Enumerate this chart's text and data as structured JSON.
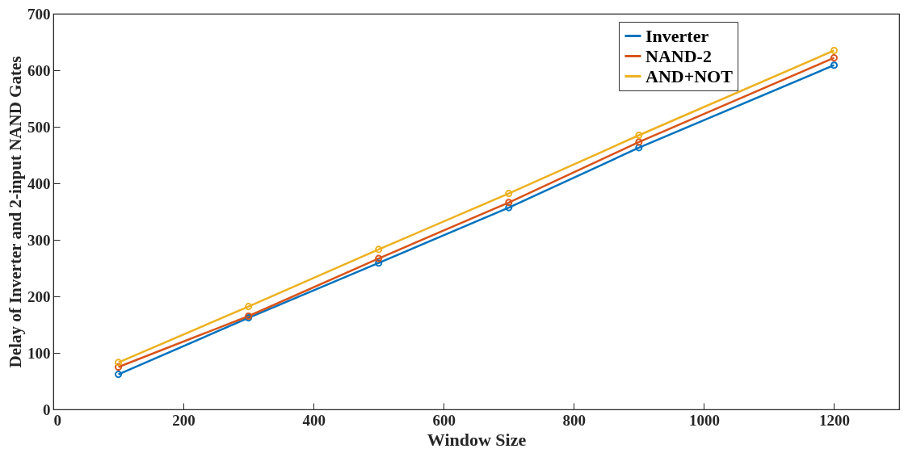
{
  "chart_data": {
    "type": "line",
    "xlabel": "Window Size",
    "ylabel": "Delay of Inverter and 2-input NAND Gates",
    "x": [
      100,
      300,
      500,
      700,
      900,
      1200
    ],
    "series": [
      {
        "name": "Inverter",
        "color": "#0072bd",
        "values": [
          62,
          162,
          259,
          357,
          463,
          609
        ]
      },
      {
        "name": "NAND-2",
        "color": "#d95319",
        "values": [
          75,
          165,
          267,
          366,
          473,
          622
        ]
      },
      {
        "name": "AND+NOT",
        "color": "#edb120",
        "values": [
          83,
          182,
          283,
          382,
          485,
          635
        ]
      }
    ],
    "xlim": [
      0,
      1300
    ],
    "xticks": [
      0,
      200,
      400,
      600,
      800,
      1000,
      1200
    ],
    "ylim": [
      0,
      700
    ],
    "yticks": [
      0,
      100,
      200,
      300,
      400,
      500,
      600,
      700
    ],
    "grid": false,
    "legend": "top right",
    "marker": "circle",
    "line_style": "solid"
  }
}
